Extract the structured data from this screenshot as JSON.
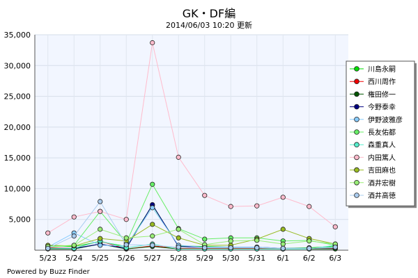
{
  "header": {
    "title": "GK・DF編",
    "subtitle": "2014/06/03 10:20 更新"
  },
  "footer": {
    "credit": "Powered by Buzz Finder"
  },
  "chart_data": {
    "type": "line",
    "title": "GK・DF編",
    "subtitle": "2014/06/03 10:20 更新",
    "xlabel": "",
    "ylabel": "",
    "categories": [
      "5/23",
      "5/24",
      "5/25",
      "5/26",
      "5/27",
      "5/28",
      "5/29",
      "5/30",
      "5/31",
      "6/1",
      "6/2",
      "6/3"
    ],
    "ylim": [
      0,
      35000
    ],
    "yticks": [
      5000,
      10000,
      15000,
      20000,
      25000,
      30000,
      35000
    ],
    "ytick_labels": [
      "5,000",
      "10,000",
      "15,000",
      "20,000",
      "25,000",
      "30,000",
      "35,000"
    ],
    "grid": true,
    "legend_position": "right",
    "series": [
      {
        "name": "川島永嗣",
        "color": "#00dd00",
        "values": [
          700,
          600,
          1400,
          600,
          7300,
          700,
          600,
          500,
          400,
          300,
          400,
          600
        ]
      },
      {
        "name": "西川周作",
        "color": "#ee0000",
        "values": [
          400,
          300,
          1500,
          200,
          700,
          300,
          300,
          300,
          300,
          200,
          300,
          300
        ]
      },
      {
        "name": "権田修一",
        "color": "#005500",
        "values": [
          200,
          200,
          1000,
          200,
          600,
          200,
          200,
          200,
          200,
          200,
          200,
          200
        ]
      },
      {
        "name": "今野泰幸",
        "color": "#000080",
        "values": [
          300,
          300,
          1000,
          300,
          7400,
          600,
          500,
          500,
          500,
          300,
          300,
          400
        ]
      },
      {
        "name": "伊野波雅彦",
        "color": "#88ccff",
        "values": [
          500,
          2800,
          800,
          700,
          6900,
          800,
          500,
          500,
          500,
          300,
          300,
          400
        ]
      },
      {
        "name": "長友佑都",
        "color": "#66ee66",
        "values": [
          500,
          800,
          6300,
          1200,
          10700,
          3500,
          1800,
          2000,
          2000,
          1500,
          1600,
          800
        ]
      },
      {
        "name": "森重真人",
        "color": "#55eecc",
        "values": [
          300,
          300,
          1500,
          400,
          1000,
          200,
          200,
          200,
          200,
          200,
          200,
          800
        ]
      },
      {
        "name": "内田篤人",
        "color": "#ffbbcc",
        "values": [
          2800,
          5400,
          6300,
          5000,
          33700,
          15100,
          8900,
          7100,
          7200,
          8600,
          7100,
          3800
        ]
      },
      {
        "name": "吉田麻也",
        "color": "#99bb22",
        "values": [
          800,
          700,
          1900,
          1500,
          4200,
          2000,
          800,
          800,
          1800,
          3400,
          1900,
          1000
        ]
      },
      {
        "name": "酒井宏樹",
        "color": "#99ee77",
        "values": [
          600,
          800,
          3400,
          2000,
          2300,
          3400,
          900,
          1500,
          1600,
          1000,
          1500,
          1000
        ]
      },
      {
        "name": "酒井高徳",
        "color": "#aaccee",
        "values": [
          300,
          2300,
          7900,
          900,
          800,
          500,
          400,
          400,
          400,
          300,
          300,
          500
        ]
      }
    ]
  }
}
